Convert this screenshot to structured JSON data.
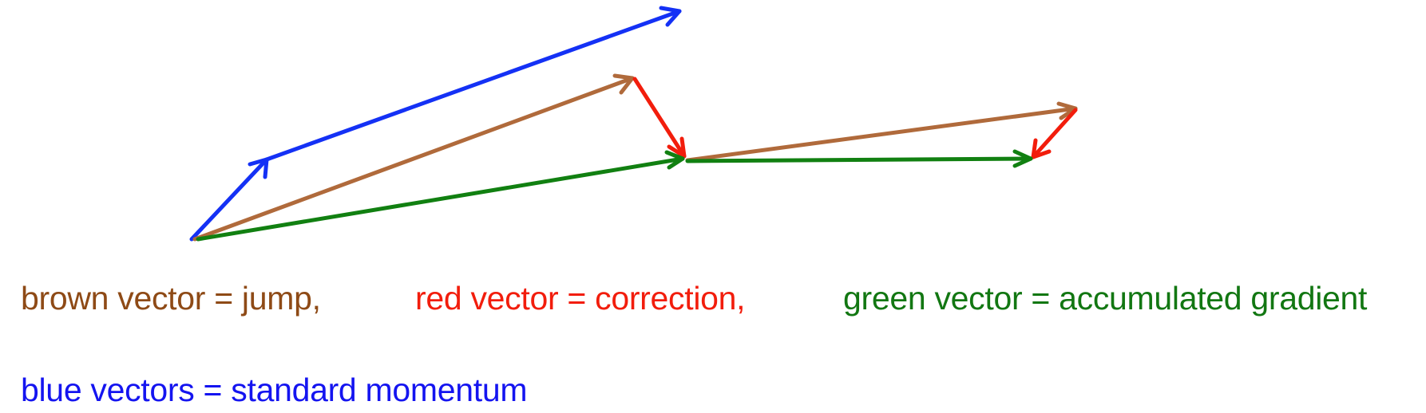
{
  "colors": {
    "blue": "#1431f5",
    "brown": "#b06a3b",
    "red": "#f21d0c",
    "green": "#118011",
    "brown_text": "#8e4a16",
    "red_text": "#f21d0c",
    "green_text": "#127712",
    "blue_text": "#1414f0"
  },
  "captions": {
    "brown": "brown vector = jump,",
    "red": "red vector = correction,",
    "green": "green vector = accumulated gradient",
    "blue": "blue vectors = standard momentum"
  }
}
